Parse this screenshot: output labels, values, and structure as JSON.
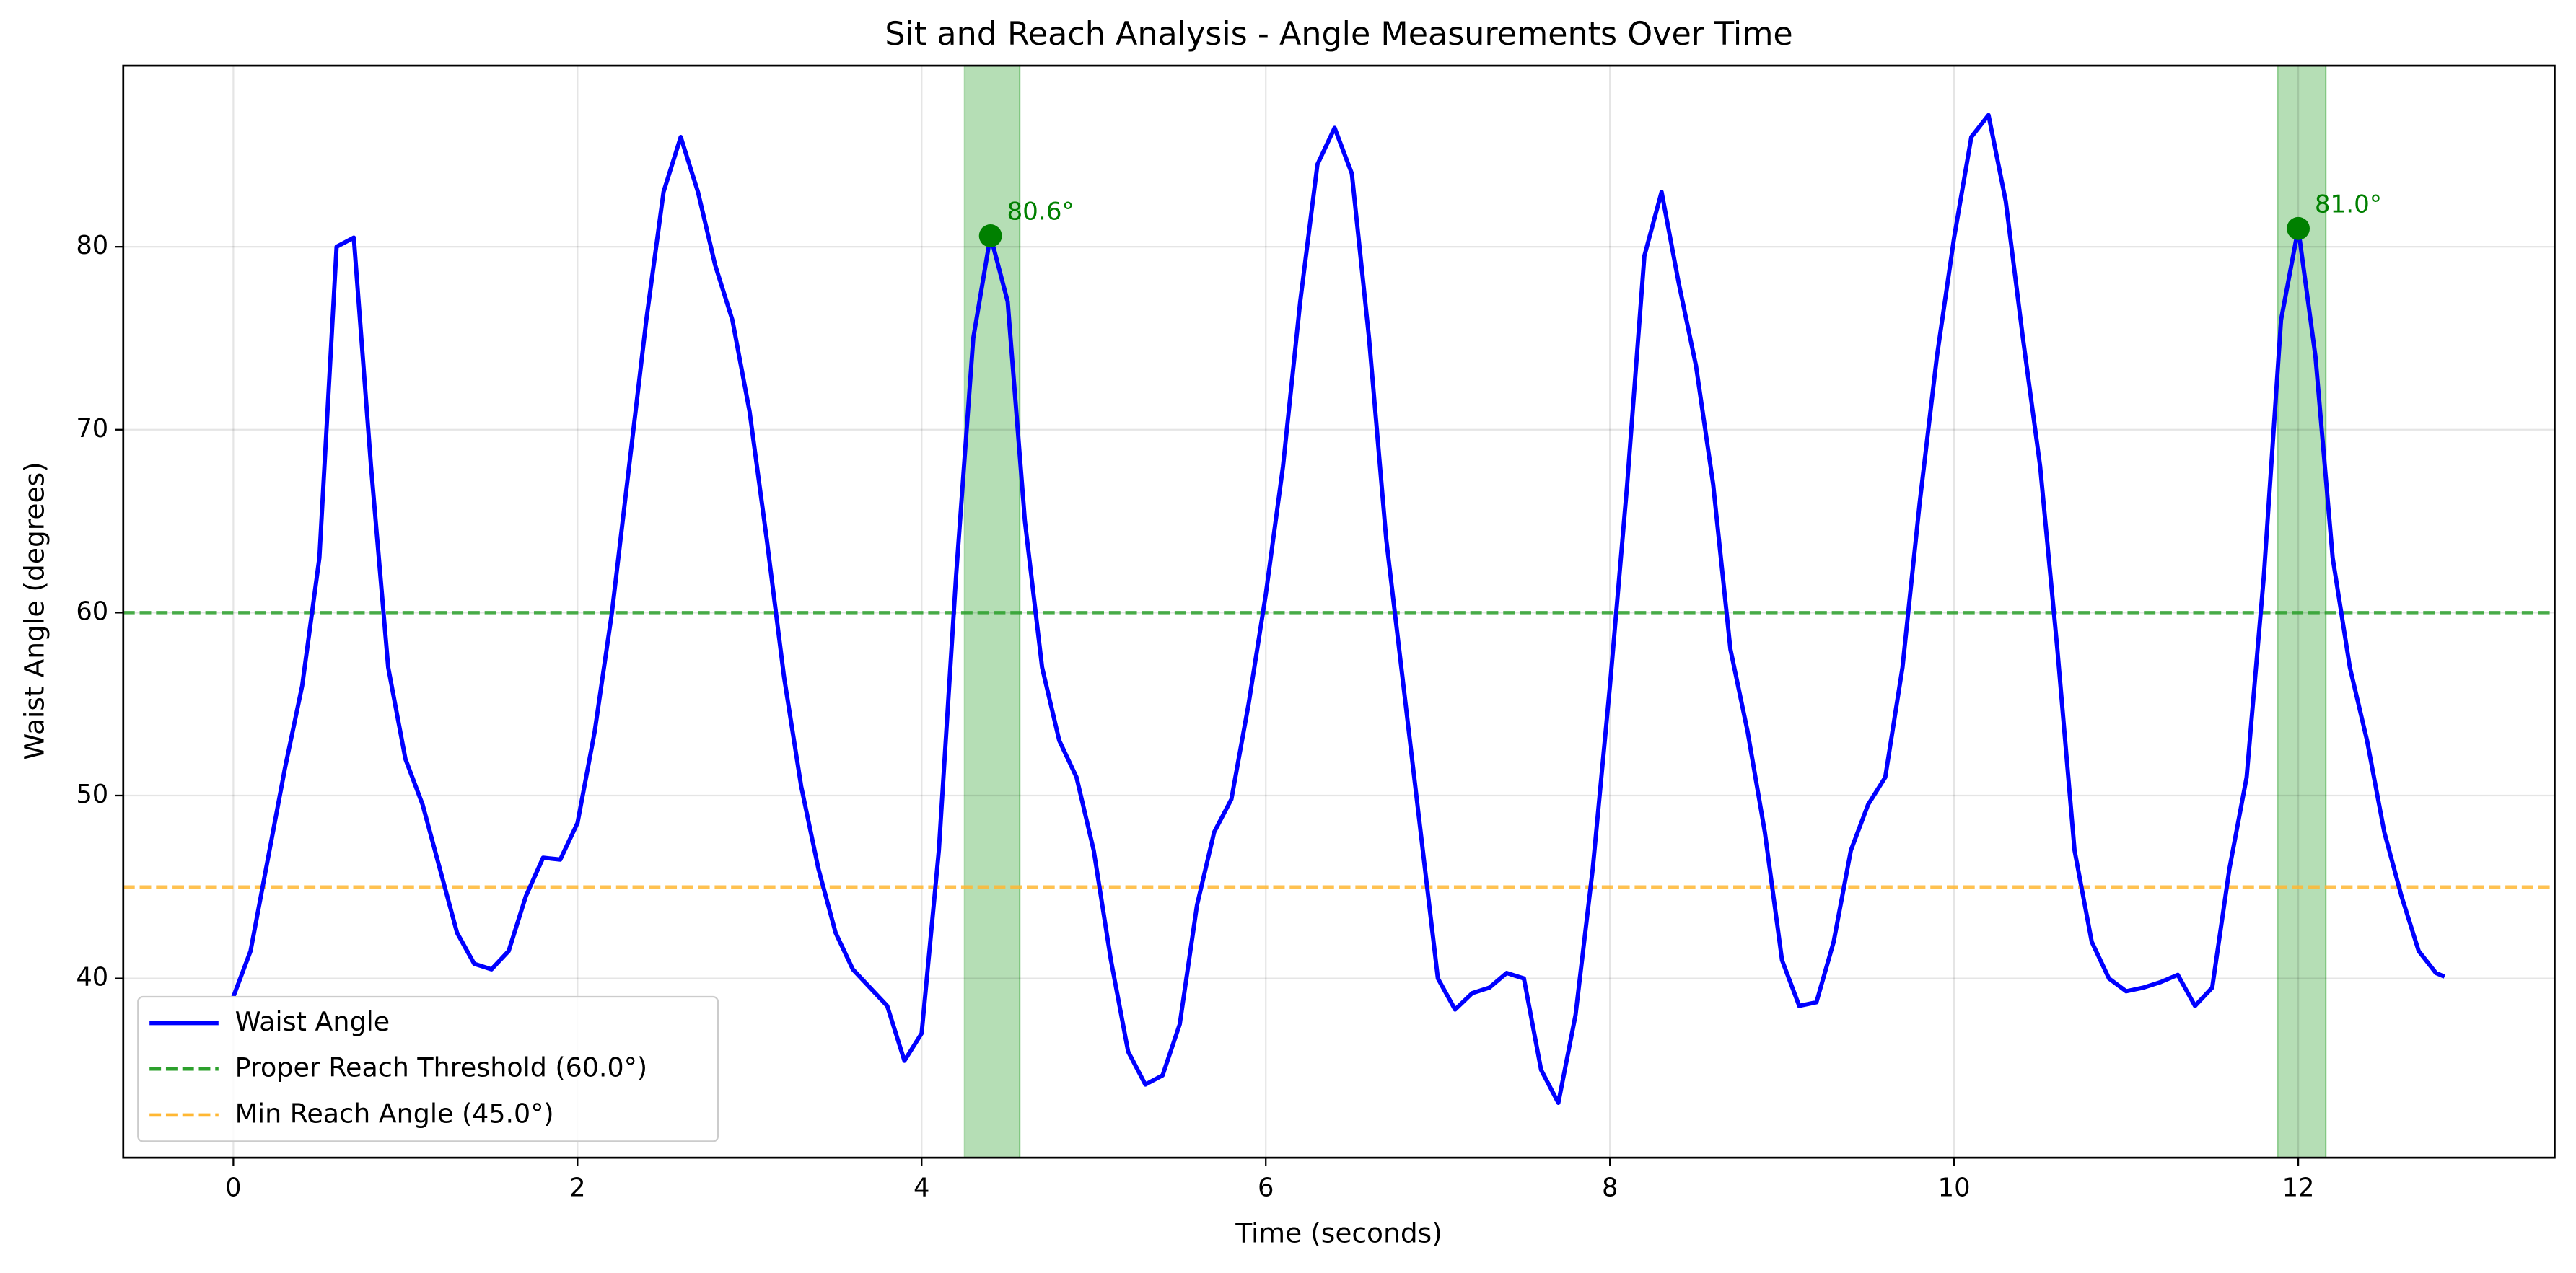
{
  "chart_data": {
    "type": "line",
    "title": "Sit and Reach Analysis - Angle Measurements Over Time",
    "x_label": "Time (seconds)",
    "y_label": "Waist Angle (degrees)",
    "x": [
      0,
      0.1,
      0.2,
      0.3,
      0.4,
      0.5,
      0.6,
      0.7,
      0.8,
      0.9,
      1.0,
      1.1,
      1.2,
      1.3,
      1.4,
      1.5,
      1.6,
      1.7,
      1.8,
      1.9,
      2.0,
      2.1,
      2.2,
      2.3,
      2.4,
      2.5,
      2.6,
      2.7,
      2.8,
      2.9,
      3.0,
      3.1,
      3.2,
      3.3,
      3.4,
      3.5,
      3.6,
      3.7,
      3.8,
      3.9,
      4.0,
      4.1,
      4.2,
      4.3,
      4.4,
      4.5,
      4.6,
      4.7,
      4.8,
      4.9,
      5.0,
      5.1,
      5.2,
      5.3,
      5.4,
      5.5,
      5.6,
      5.7,
      5.8,
      5.9,
      6.0,
      6.1,
      6.2,
      6.3,
      6.4,
      6.5,
      6.6,
      6.7,
      6.8,
      6.9,
      7.0,
      7.1,
      7.2,
      7.3,
      7.4,
      7.5,
      7.6,
      7.7,
      7.8,
      7.9,
      8.0,
      8.1,
      8.2,
      8.3,
      8.4,
      8.5,
      8.6,
      8.7,
      8.8,
      8.9,
      9.0,
      9.1,
      9.2,
      9.3,
      9.4,
      9.5,
      9.6,
      9.7,
      9.8,
      9.9,
      10.0,
      10.1,
      10.2,
      10.3,
      10.4,
      10.5,
      10.6,
      10.7,
      10.8,
      10.9,
      11.0,
      11.1,
      11.2,
      11.3,
      11.4,
      11.5,
      11.6,
      11.7,
      11.8,
      11.9,
      12.0,
      12.1,
      12.2,
      12.3,
      12.4,
      12.5,
      12.6,
      12.7,
      12.8,
      12.85
    ],
    "series": [
      {
        "name": "Waist Angle",
        "color": "#0000ff",
        "values": [
          39,
          41.5,
          46.5,
          51.5,
          56,
          63,
          80,
          80.5,
          68,
          57,
          52,
          49.5,
          46,
          42.5,
          40.8,
          40.5,
          41.5,
          44.5,
          46.6,
          46.5,
          48.5,
          53.5,
          60,
          68,
          76,
          83,
          86,
          83,
          79,
          76,
          71,
          64,
          56.5,
          50.5,
          46,
          42.5,
          40.5,
          39.5,
          38.5,
          35.5,
          37,
          47,
          62,
          75,
          80.6,
          77,
          65,
          57,
          53,
          51,
          47,
          41,
          36,
          34.2,
          34.7,
          37.5,
          44,
          48,
          49.8,
          55,
          61,
          68,
          77,
          84.5,
          86.5,
          84,
          75,
          64,
          56,
          48,
          40,
          38.3,
          39.2,
          39.5,
          40.3,
          40,
          35,
          33.2,
          38,
          46,
          56,
          67,
          79.5,
          83,
          78,
          73.5,
          67,
          58,
          53.5,
          48,
          41,
          38.5,
          38.7,
          42,
          47,
          49.5,
          51,
          57,
          66,
          74,
          80.5,
          86,
          87.2,
          82.5,
          75,
          68,
          58,
          47,
          42,
          40,
          39.3,
          39.5,
          39.8,
          40.2,
          38.5,
          39.5,
          46,
          51,
          62,
          76,
          81,
          74,
          63,
          57,
          53,
          48,
          44.5,
          41.5,
          40.3,
          40.1
        ]
      }
    ],
    "hlines": [
      {
        "name": "Proper Reach Threshold (60.0°)",
        "value": 60,
        "color": "#2ca02c"
      },
      {
        "name": "Min Reach Angle (45.0°)",
        "value": 45,
        "color": "#ffb732"
      }
    ],
    "spans": [
      [
        4.25,
        4.57
      ],
      [
        11.88,
        12.16
      ]
    ],
    "span_color": "#2ca02c",
    "peaks": [
      {
        "x": 4.4,
        "y": 80.6,
        "label": "80.6°"
      },
      {
        "x": 12.0,
        "y": 81.0,
        "label": "81.0°"
      }
    ],
    "peak_color": "#008000",
    "xlim": [
      -0.64,
      13.49
    ],
    "ylim": [
      30.2,
      89.9
    ],
    "xticks": [
      0,
      2,
      4,
      6,
      8,
      10,
      12
    ],
    "yticks": [
      40,
      50,
      60,
      70,
      80
    ],
    "grid": true,
    "legend": "lower left"
  }
}
